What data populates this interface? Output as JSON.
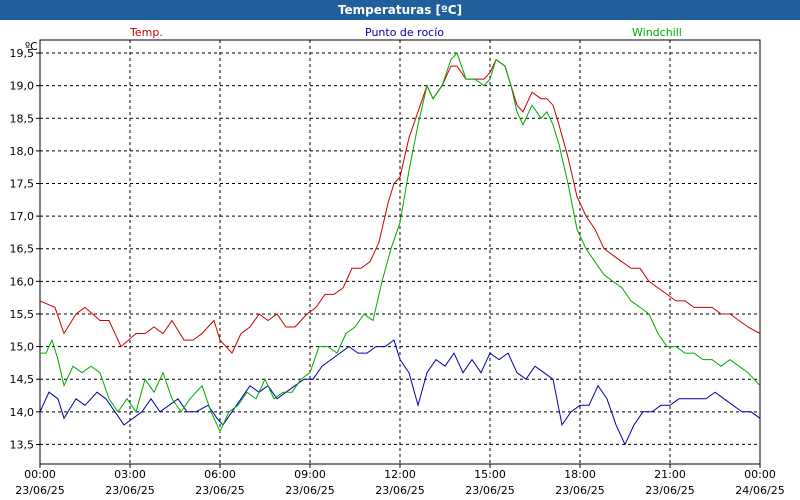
{
  "window": {
    "title": "Temperaturas [ºC]"
  },
  "chart_data": {
    "type": "line",
    "title": "Temperaturas [ºC]",
    "unit_label": "ºC",
    "ylim": [
      13.2,
      19.7
    ],
    "y_ticks": [
      {
        "value": 13.5,
        "label": "13,5"
      },
      {
        "value": 14.0,
        "label": "14,0"
      },
      {
        "value": 14.5,
        "label": "14,5"
      },
      {
        "value": 15.0,
        "label": "15,0"
      },
      {
        "value": 15.5,
        "label": "15,5"
      },
      {
        "value": 16.0,
        "label": "16,0"
      },
      {
        "value": 16.5,
        "label": "16,5"
      },
      {
        "value": 17.0,
        "label": "17,0"
      },
      {
        "value": 17.5,
        "label": "17,5"
      },
      {
        "value": 18.0,
        "label": "18,0"
      },
      {
        "value": 18.5,
        "label": "18,5"
      },
      {
        "value": 19.0,
        "label": "19,0"
      },
      {
        "value": 19.5,
        "label": "19,5"
      }
    ],
    "xlim": [
      0,
      24
    ],
    "x_ticks": [
      {
        "value": 0,
        "time": "00:00",
        "date": "23/06/25"
      },
      {
        "value": 3,
        "time": "03:00",
        "date": "23/06/25"
      },
      {
        "value": 6,
        "time": "06:00",
        "date": "23/06/25"
      },
      {
        "value": 9,
        "time": "09:00",
        "date": "23/06/25"
      },
      {
        "value": 12,
        "time": "12:00",
        "date": "23/06/25"
      },
      {
        "value": 15,
        "time": "15:00",
        "date": "23/06/25"
      },
      {
        "value": 18,
        "time": "18:00",
        "date": "23/06/25"
      },
      {
        "value": 21,
        "time": "21:00",
        "date": "23/06/25"
      },
      {
        "value": 24,
        "time": "00:00",
        "date": "24/06/25"
      }
    ],
    "grid": true,
    "series": [
      {
        "name": "Temp.",
        "color": "#cc0000",
        "points": [
          [
            0,
            15.7
          ],
          [
            0.5,
            15.6
          ],
          [
            0.8,
            15.2
          ],
          [
            1.2,
            15.5
          ],
          [
            1.5,
            15.6
          ],
          [
            2,
            15.4
          ],
          [
            2.3,
            15.4
          ],
          [
            2.7,
            15.0
          ],
          [
            3.2,
            15.2
          ],
          [
            3.5,
            15.2
          ],
          [
            3.8,
            15.3
          ],
          [
            4.1,
            15.2
          ],
          [
            4.4,
            15.4
          ],
          [
            4.8,
            15.1
          ],
          [
            5.1,
            15.1
          ],
          [
            5.4,
            15.2
          ],
          [
            5.8,
            15.4
          ],
          [
            6,
            15.1
          ],
          [
            6.4,
            14.9
          ],
          [
            6.7,
            15.2
          ],
          [
            7,
            15.3
          ],
          [
            7.3,
            15.5
          ],
          [
            7.6,
            15.4
          ],
          [
            7.9,
            15.5
          ],
          [
            8.2,
            15.3
          ],
          [
            8.5,
            15.3
          ],
          [
            8.9,
            15.5
          ],
          [
            9.2,
            15.6
          ],
          [
            9.5,
            15.8
          ],
          [
            9.8,
            15.8
          ],
          [
            10.1,
            15.9
          ],
          [
            10.4,
            16.2
          ],
          [
            10.7,
            16.2
          ],
          [
            11,
            16.3
          ],
          [
            11.3,
            16.6
          ],
          [
            11.6,
            17.2
          ],
          [
            11.8,
            17.5
          ],
          [
            12,
            17.6
          ],
          [
            12.3,
            18.2
          ],
          [
            12.6,
            18.6
          ],
          [
            12.9,
            19.0
          ],
          [
            13.1,
            18.8
          ],
          [
            13.4,
            19.0
          ],
          [
            13.7,
            19.3
          ],
          [
            13.9,
            19.3
          ],
          [
            14.2,
            19.1
          ],
          [
            14.5,
            19.1
          ],
          [
            14.8,
            19.1
          ],
          [
            15,
            19.2
          ],
          [
            15.2,
            19.4
          ],
          [
            15.5,
            19.3
          ],
          [
            15.7,
            19.0
          ],
          [
            15.9,
            18.7
          ],
          [
            16.1,
            18.6
          ],
          [
            16.4,
            18.9
          ],
          [
            16.7,
            18.8
          ],
          [
            16.9,
            18.8
          ],
          [
            17.1,
            18.7
          ],
          [
            17.3,
            18.4
          ],
          [
            17.6,
            17.9
          ],
          [
            17.9,
            17.3
          ],
          [
            18.2,
            17.0
          ],
          [
            18.5,
            16.8
          ],
          [
            18.8,
            16.5
          ],
          [
            19.1,
            16.4
          ],
          [
            19.4,
            16.3
          ],
          [
            19.7,
            16.2
          ],
          [
            20,
            16.2
          ],
          [
            20.3,
            16.0
          ],
          [
            20.6,
            15.9
          ],
          [
            20.9,
            15.8
          ],
          [
            21.2,
            15.7
          ],
          [
            21.5,
            15.7
          ],
          [
            21.8,
            15.6
          ],
          [
            22.1,
            15.6
          ],
          [
            22.4,
            15.6
          ],
          [
            22.7,
            15.5
          ],
          [
            23,
            15.5
          ],
          [
            23.3,
            15.4
          ],
          [
            23.6,
            15.3
          ],
          [
            24,
            15.2
          ]
        ]
      },
      {
        "name": "Punto de rocío",
        "color": "#0000aa",
        "points": [
          [
            0,
            14.0
          ],
          [
            0.3,
            14.3
          ],
          [
            0.6,
            14.2
          ],
          [
            0.8,
            13.9
          ],
          [
            1.2,
            14.2
          ],
          [
            1.5,
            14.1
          ],
          [
            1.9,
            14.3
          ],
          [
            2.2,
            14.2
          ],
          [
            2.5,
            14.0
          ],
          [
            2.8,
            13.8
          ],
          [
            3.1,
            13.9
          ],
          [
            3.4,
            14.0
          ],
          [
            3.7,
            14.2
          ],
          [
            4,
            14.0
          ],
          [
            4.3,
            14.1
          ],
          [
            4.6,
            14.2
          ],
          [
            4.9,
            14.0
          ],
          [
            5.2,
            14.0
          ],
          [
            5.6,
            14.1
          ],
          [
            5.9,
            13.9
          ],
          [
            6.1,
            13.8
          ],
          [
            6.4,
            14.0
          ],
          [
            6.7,
            14.2
          ],
          [
            7,
            14.4
          ],
          [
            7.3,
            14.3
          ],
          [
            7.6,
            14.4
          ],
          [
            7.9,
            14.2
          ],
          [
            8.2,
            14.3
          ],
          [
            8.5,
            14.4
          ],
          [
            8.8,
            14.5
          ],
          [
            9.1,
            14.5
          ],
          [
            9.4,
            14.7
          ],
          [
            9.7,
            14.8
          ],
          [
            10,
            14.9
          ],
          [
            10.3,
            15.0
          ],
          [
            10.6,
            14.9
          ],
          [
            10.9,
            14.9
          ],
          [
            11.2,
            15.0
          ],
          [
            11.5,
            15.0
          ],
          [
            11.8,
            15.1
          ],
          [
            12,
            14.8
          ],
          [
            12.3,
            14.6
          ],
          [
            12.6,
            14.1
          ],
          [
            12.9,
            14.6
          ],
          [
            13.2,
            14.8
          ],
          [
            13.5,
            14.7
          ],
          [
            13.8,
            14.9
          ],
          [
            14.1,
            14.6
          ],
          [
            14.4,
            14.8
          ],
          [
            14.7,
            14.6
          ],
          [
            15,
            14.9
          ],
          [
            15.3,
            14.8
          ],
          [
            15.6,
            14.9
          ],
          [
            15.9,
            14.6
          ],
          [
            16.2,
            14.5
          ],
          [
            16.5,
            14.7
          ],
          [
            16.8,
            14.6
          ],
          [
            17.1,
            14.5
          ],
          [
            17.4,
            13.8
          ],
          [
            17.7,
            14.0
          ],
          [
            18,
            14.1
          ],
          [
            18.3,
            14.1
          ],
          [
            18.6,
            14.4
          ],
          [
            18.9,
            14.2
          ],
          [
            19.2,
            13.8
          ],
          [
            19.5,
            13.5
          ],
          [
            19.8,
            13.8
          ],
          [
            20.1,
            14.0
          ],
          [
            20.4,
            14.0
          ],
          [
            20.7,
            14.1
          ],
          [
            21,
            14.1
          ],
          [
            21.3,
            14.2
          ],
          [
            21.6,
            14.2
          ],
          [
            21.9,
            14.2
          ],
          [
            22.2,
            14.2
          ],
          [
            22.5,
            14.3
          ],
          [
            22.8,
            14.2
          ],
          [
            23.1,
            14.1
          ],
          [
            23.4,
            14.0
          ],
          [
            23.7,
            14.0
          ],
          [
            24,
            13.9
          ]
        ]
      },
      {
        "name": "Windchill",
        "color": "#00aa00",
        "points": [
          [
            0,
            14.9
          ],
          [
            0.2,
            14.9
          ],
          [
            0.4,
            15.1
          ],
          [
            0.6,
            14.8
          ],
          [
            0.8,
            14.4
          ],
          [
            1.1,
            14.7
          ],
          [
            1.4,
            14.6
          ],
          [
            1.7,
            14.7
          ],
          [
            2,
            14.6
          ],
          [
            2.3,
            14.2
          ],
          [
            2.6,
            14.0
          ],
          [
            2.9,
            14.2
          ],
          [
            3.2,
            14.0
          ],
          [
            3.5,
            14.5
          ],
          [
            3.8,
            14.3
          ],
          [
            4.1,
            14.6
          ],
          [
            4.4,
            14.2
          ],
          [
            4.7,
            14.0
          ],
          [
            5,
            14.2
          ],
          [
            5.4,
            14.4
          ],
          [
            5.7,
            14.0
          ],
          [
            6,
            13.7
          ],
          [
            6.3,
            14.0
          ],
          [
            6.6,
            14.1
          ],
          [
            6.9,
            14.3
          ],
          [
            7.2,
            14.2
          ],
          [
            7.5,
            14.5
          ],
          [
            7.8,
            14.2
          ],
          [
            8.1,
            14.3
          ],
          [
            8.4,
            14.3
          ],
          [
            8.7,
            14.5
          ],
          [
            9,
            14.6
          ],
          [
            9.3,
            15.0
          ],
          [
            9.6,
            15.0
          ],
          [
            9.9,
            14.9
          ],
          [
            10.2,
            15.2
          ],
          [
            10.5,
            15.3
          ],
          [
            10.8,
            15.5
          ],
          [
            11.1,
            15.4
          ],
          [
            11.4,
            16.0
          ],
          [
            11.7,
            16.5
          ],
          [
            12,
            16.9
          ],
          [
            12.3,
            17.7
          ],
          [
            12.6,
            18.4
          ],
          [
            12.9,
            19.0
          ],
          [
            13.1,
            18.8
          ],
          [
            13.4,
            19.0
          ],
          [
            13.7,
            19.4
          ],
          [
            13.9,
            19.5
          ],
          [
            14.2,
            19.1
          ],
          [
            14.5,
            19.1
          ],
          [
            14.8,
            19.0
          ],
          [
            15,
            19.1
          ],
          [
            15.2,
            19.4
          ],
          [
            15.5,
            19.3
          ],
          [
            15.7,
            19.0
          ],
          [
            15.9,
            18.6
          ],
          [
            16.1,
            18.4
          ],
          [
            16.4,
            18.7
          ],
          [
            16.7,
            18.5
          ],
          [
            16.9,
            18.6
          ],
          [
            17.1,
            18.4
          ],
          [
            17.3,
            18.1
          ],
          [
            17.6,
            17.5
          ],
          [
            17.9,
            16.8
          ],
          [
            18.2,
            16.5
          ],
          [
            18.5,
            16.3
          ],
          [
            18.8,
            16.1
          ],
          [
            19.1,
            16.0
          ],
          [
            19.4,
            15.9
          ],
          [
            19.7,
            15.7
          ],
          [
            20,
            15.6
          ],
          [
            20.3,
            15.5
          ],
          [
            20.6,
            15.2
          ],
          [
            20.9,
            15.0
          ],
          [
            21.2,
            15.0
          ],
          [
            21.5,
            14.9
          ],
          [
            21.8,
            14.9
          ],
          [
            22.1,
            14.8
          ],
          [
            22.4,
            14.8
          ],
          [
            22.7,
            14.7
          ],
          [
            23,
            14.8
          ],
          [
            23.3,
            14.7
          ],
          [
            23.6,
            14.6
          ],
          [
            24,
            14.4
          ]
        ]
      }
    ]
  }
}
